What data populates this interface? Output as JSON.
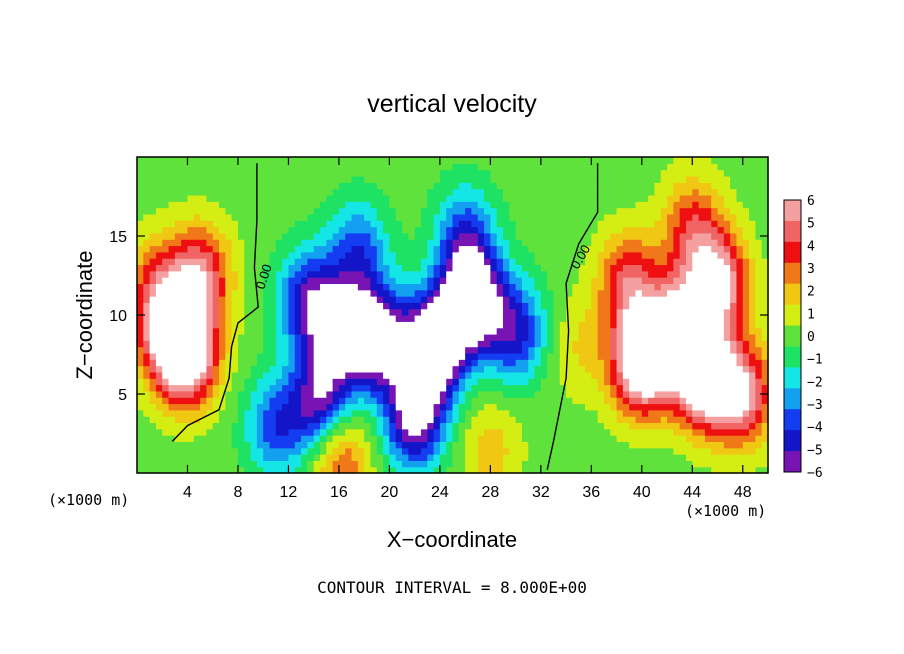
{
  "chart_data": {
    "type": "heatmap",
    "title": "vertical velocity",
    "xlabel": "X−coordinate",
    "ylabel": "Z−coordinate",
    "x_unit": "(×1000 m)",
    "z_unit": "(×1000 m)",
    "xlim": [
      0,
      50
    ],
    "ylim": [
      0,
      20
    ],
    "x_ticks": [
      4,
      8,
      12,
      16,
      20,
      24,
      28,
      32,
      36,
      40,
      44,
      48
    ],
    "y_ticks": [
      5,
      10,
      15
    ],
    "x_tick_labels": [
      "4",
      "8",
      "12",
      "16",
      "20",
      "24",
      "28",
      "32",
      "36",
      "40",
      "44",
      "48"
    ],
    "y_tick_labels": [
      "5",
      "10",
      "15"
    ],
    "colorbar": {
      "range": [
        -6,
        6
      ],
      "ticks": [
        6,
        5,
        4,
        3,
        2,
        1,
        0,
        -1,
        -2,
        -3,
        -4,
        -5,
        -6
      ],
      "tick_labels": [
        "6",
        "5",
        "4",
        "3",
        "2",
        "1",
        "0",
        "−1",
        "−2",
        "−3",
        "−4",
        "−5",
        "−6"
      ],
      "colors": [
        "#f5a0a0",
        "#f06464",
        "#ee1010",
        "#f07818",
        "#f0c814",
        "#d4ee14",
        "#60e23c",
        "#1ee264",
        "#14e6e6",
        "#14a0f0",
        "#143cf0",
        "#1414c8",
        "#7814b4"
      ]
    },
    "contour_label": "0.00",
    "contour_labels": [
      "0.00",
      "0.00"
    ],
    "contour_interval_text": "CONTOUR INTERVAL = 8.000E+00",
    "field_features": [
      {
        "x": 5.0,
        "z": 12.5,
        "w": 5.5
      },
      {
        "x": 2.5,
        "z": 9.0,
        "w": 6.0
      },
      {
        "x": 4.0,
        "z": 7.5,
        "w": 8.0
      },
      {
        "x": 1.5,
        "z": 12.0,
        "w": 3.0
      },
      {
        "x": 16.0,
        "z": 9.0,
        "w": -6.0
      },
      {
        "x": 19.0,
        "z": 8.5,
        "w": -8.0
      },
      {
        "x": 14.5,
        "z": 4.5,
        "w": -6.0
      },
      {
        "x": 13.5,
        "z": 11.0,
        "w": -5.0
      },
      {
        "x": 17.5,
        "z": 14.0,
        "w": -4.0
      },
      {
        "x": 23.5,
        "z": 8.0,
        "w": -10.0
      },
      {
        "x": 26.5,
        "z": 11.0,
        "w": -9.0
      },
      {
        "x": 22.0,
        "z": 3.5,
        "w": -7.0
      },
      {
        "x": 26.0,
        "z": 15.0,
        "w": -4.0
      },
      {
        "x": 30.0,
        "z": 9.0,
        "w": -5.0
      },
      {
        "x": 11.0,
        "z": 3.0,
        "w": -4.0
      },
      {
        "x": 16.0,
        "z": 1.0,
        "w": 4.0
      },
      {
        "x": 28.0,
        "z": 1.5,
        "w": 2.0
      },
      {
        "x": 43.0,
        "z": 9.0,
        "w": 8.0
      },
      {
        "x": 46.0,
        "z": 12.0,
        "w": 7.0
      },
      {
        "x": 40.0,
        "z": 7.0,
        "w": 9.0
      },
      {
        "x": 45.0,
        "z": 6.0,
        "w": 8.0
      },
      {
        "x": 48.0,
        "z": 5.0,
        "w": 6.0
      },
      {
        "x": 39.0,
        "z": 12.0,
        "w": 5.0
      },
      {
        "x": 44.0,
        "z": 15.5,
        "w": 4.0
      },
      {
        "x": 35.0,
        "z": 8.0,
        "w": 1.5
      }
    ],
    "zero_contours": [
      {
        "name": "left-zero-contour",
        "points": [
          [
            9.5,
            19.6
          ],
          [
            9.5,
            16.0
          ],
          [
            9.3,
            13.0
          ],
          [
            9.6,
            10.5
          ],
          [
            8.0,
            9.5
          ],
          [
            7.5,
            8.0
          ],
          [
            7.3,
            6.0
          ],
          [
            6.5,
            4.0
          ],
          [
            4.0,
            3.0
          ],
          [
            2.8,
            2.0
          ]
        ]
      },
      {
        "name": "right-zero-contour",
        "points": [
          [
            36.5,
            19.6
          ],
          [
            36.5,
            16.5
          ],
          [
            35.0,
            14.5
          ],
          [
            34.0,
            12.0
          ],
          [
            34.2,
            9.0
          ],
          [
            34.0,
            6.0
          ],
          [
            33.5,
            4.0
          ],
          [
            33.0,
            2.0
          ],
          [
            32.5,
            0.2
          ]
        ]
      }
    ]
  }
}
